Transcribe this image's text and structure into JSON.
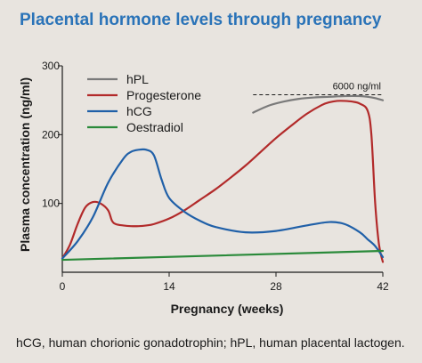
{
  "chart_data": {
    "type": "line",
    "title": "Placental hormone levels through pregnancy",
    "xlabel": "Pregnancy (weeks)",
    "ylabel": "Plasma concentration (ng/ml)",
    "caption": "hCG, human chorionic gonadotrophin; hPL, human placental lactogen.",
    "xlim": [
      0,
      42
    ],
    "ylim": [
      0,
      300
    ],
    "xticks": [
      0,
      14,
      28,
      42
    ],
    "yticks": [
      100,
      200,
      300
    ],
    "grid": false,
    "legend_position": "top-left",
    "annotation": {
      "text": "6000  ng/ml",
      "y": 258
    },
    "series": [
      {
        "name": "hPL",
        "color": "#7a7a7a",
        "x": [
          25,
          27,
          29,
          31,
          33,
          35,
          37,
          39,
          40,
          41,
          42
        ],
        "y": [
          232,
          242,
          248,
          252,
          254,
          255,
          256,
          256,
          255,
          253,
          250
        ]
      },
      {
        "name": "Progesterone",
        "color": "#b22a2a",
        "x": [
          0,
          1,
          2,
          3,
          4,
          5,
          6,
          6.5,
          7,
          8,
          9,
          10,
          11,
          12,
          14,
          16,
          18,
          20,
          22,
          24,
          26,
          28,
          30,
          32,
          34,
          35,
          36,
          37,
          38,
          39,
          40,
          40.5,
          41,
          41.5,
          42
        ],
        "y": [
          20,
          40,
          70,
          94,
          102,
          100,
          90,
          75,
          70,
          68,
          67,
          67,
          68,
          70,
          78,
          90,
          105,
          120,
          137,
          155,
          175,
          195,
          213,
          230,
          243,
          247,
          249,
          249,
          248,
          245,
          235,
          200,
          100,
          40,
          15
        ]
      },
      {
        "name": "hCG",
        "color": "#2060a8",
        "x": [
          0,
          2,
          4,
          6,
          8,
          9,
          10,
          11,
          12,
          13,
          14,
          16,
          18,
          20,
          24,
          28,
          32,
          35,
          37,
          39,
          40,
          41,
          42
        ],
        "y": [
          20,
          45,
          80,
          130,
          165,
          175,
          178,
          178,
          170,
          135,
          108,
          88,
          75,
          66,
          58,
          60,
          68,
          73,
          70,
          58,
          48,
          38,
          22
        ]
      },
      {
        "name": "Oestradiol",
        "color": "#2a8a3a",
        "x": [
          0,
          42
        ],
        "y": [
          18,
          31
        ]
      }
    ]
  }
}
